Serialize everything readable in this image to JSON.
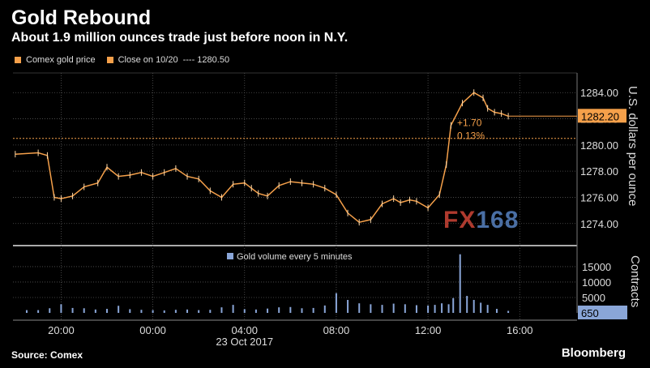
{
  "header": {
    "title": "Gold Rebound",
    "subtitle": "About 1.9 million ounces trade just before noon in N.Y."
  },
  "legend": {
    "series1": "Comex gold price",
    "series2": "Close on 10/20",
    "series2_value": "---- 1280.50"
  },
  "axes": {
    "right_title_price": "U.S. dollars per ounce",
    "right_title_volume": "Contracts",
    "date_label": "23 Oct 2017"
  },
  "annotations": {
    "last_price": "1282.20",
    "change": "+1.70",
    "change_pct": "0.13%",
    "volume_label": "Gold volume every 5 minutes",
    "last_volume": "650"
  },
  "watermark": {
    "fx": "FX",
    "num": "168"
  },
  "footer": {
    "source": "Source: Comex",
    "brand": "Bloomberg"
  },
  "colors": {
    "price": "#f5a04a",
    "volume": "#8aa6d8",
    "close_line": "#f5a04a",
    "grid": "#555555"
  },
  "chart_data": [
    {
      "type": "line",
      "title": "Comex gold price",
      "ylabel": "U.S. dollars per ounce",
      "ylim": [
        1272.5,
        1285.5
      ],
      "yticks": [
        1274.0,
        1276.0,
        1278.0,
        1280.0,
        1282.0,
        1284.0
      ],
      "xticks": [
        "20:00",
        "00:00",
        "04:00",
        "08:00",
        "12:00",
        "16:00"
      ],
      "xlim_hours": [
        17.9,
        42.5
      ],
      "reference_line": {
        "label": "Close on 10/20",
        "value": 1280.5
      },
      "series": [
        {
          "name": "Comex gold price",
          "x_hours": [
            18.0,
            19.0,
            19.4,
            19.7,
            20.0,
            20.5,
            21.0,
            21.6,
            22.0,
            22.5,
            23.0,
            23.5,
            24.0,
            24.5,
            25.0,
            25.5,
            26.0,
            26.5,
            27.0,
            27.5,
            28.0,
            28.3,
            28.6,
            29.0,
            29.5,
            30.0,
            30.5,
            31.0,
            31.5,
            32.0,
            32.5,
            33.0,
            33.5,
            34.0,
            34.5,
            34.8,
            35.2,
            35.5,
            36.0,
            36.5,
            36.8,
            37.0,
            37.5,
            38.0,
            38.4,
            38.6,
            38.9,
            39.2,
            39.5
          ],
          "values": [
            1279.3,
            1279.4,
            1279.2,
            1276.0,
            1275.9,
            1276.1,
            1276.8,
            1277.1,
            1278.3,
            1277.6,
            1277.7,
            1277.9,
            1277.6,
            1277.9,
            1278.2,
            1277.6,
            1277.4,
            1276.5,
            1276.0,
            1277.0,
            1277.1,
            1276.7,
            1276.3,
            1276.1,
            1276.9,
            1277.2,
            1277.1,
            1277.0,
            1276.7,
            1276.2,
            1274.8,
            1274.1,
            1274.3,
            1275.5,
            1275.9,
            1275.6,
            1275.8,
            1275.7,
            1275.2,
            1276.2,
            1278.5,
            1281.5,
            1283.2,
            1284.0,
            1283.6,
            1282.8,
            1282.5,
            1282.4,
            1282.2
          ]
        }
      ]
    },
    {
      "type": "bar",
      "title": "Gold volume every 5 minutes",
      "ylabel": "Contracts",
      "ylim": [
        0,
        20500
      ],
      "yticks": [
        5000,
        10000,
        15000
      ],
      "series": [
        {
          "name": "Gold volume every 5 minutes",
          "x_hours": [
            18.5,
            19.0,
            19.5,
            20.0,
            20.5,
            21.0,
            21.5,
            22.0,
            22.5,
            23.0,
            23.5,
            24.0,
            24.5,
            25.0,
            25.5,
            26.0,
            26.5,
            27.0,
            27.5,
            28.0,
            28.5,
            29.0,
            29.5,
            30.0,
            30.5,
            31.0,
            31.5,
            32.0,
            32.5,
            33.0,
            33.5,
            34.0,
            34.5,
            35.0,
            35.5,
            36.0,
            36.3,
            36.6,
            36.9,
            37.1,
            37.4,
            37.7,
            38.0,
            38.3,
            38.6,
            39.0,
            39.5
          ],
          "values": [
            900,
            900,
            1500,
            2800,
            1600,
            1500,
            1100,
            1300,
            2300,
            1200,
            1000,
            900,
            800,
            1000,
            1100,
            900,
            1000,
            1800,
            2600,
            1200,
            1100,
            1400,
            1800,
            1900,
            1500,
            1600,
            2400,
            6400,
            4200,
            3100,
            2800,
            2600,
            3000,
            2800,
            2500,
            2400,
            2600,
            3100,
            2800,
            4800,
            19000,
            5500,
            4200,
            3300,
            2600,
            1300,
            650
          ]
        }
      ]
    }
  ]
}
